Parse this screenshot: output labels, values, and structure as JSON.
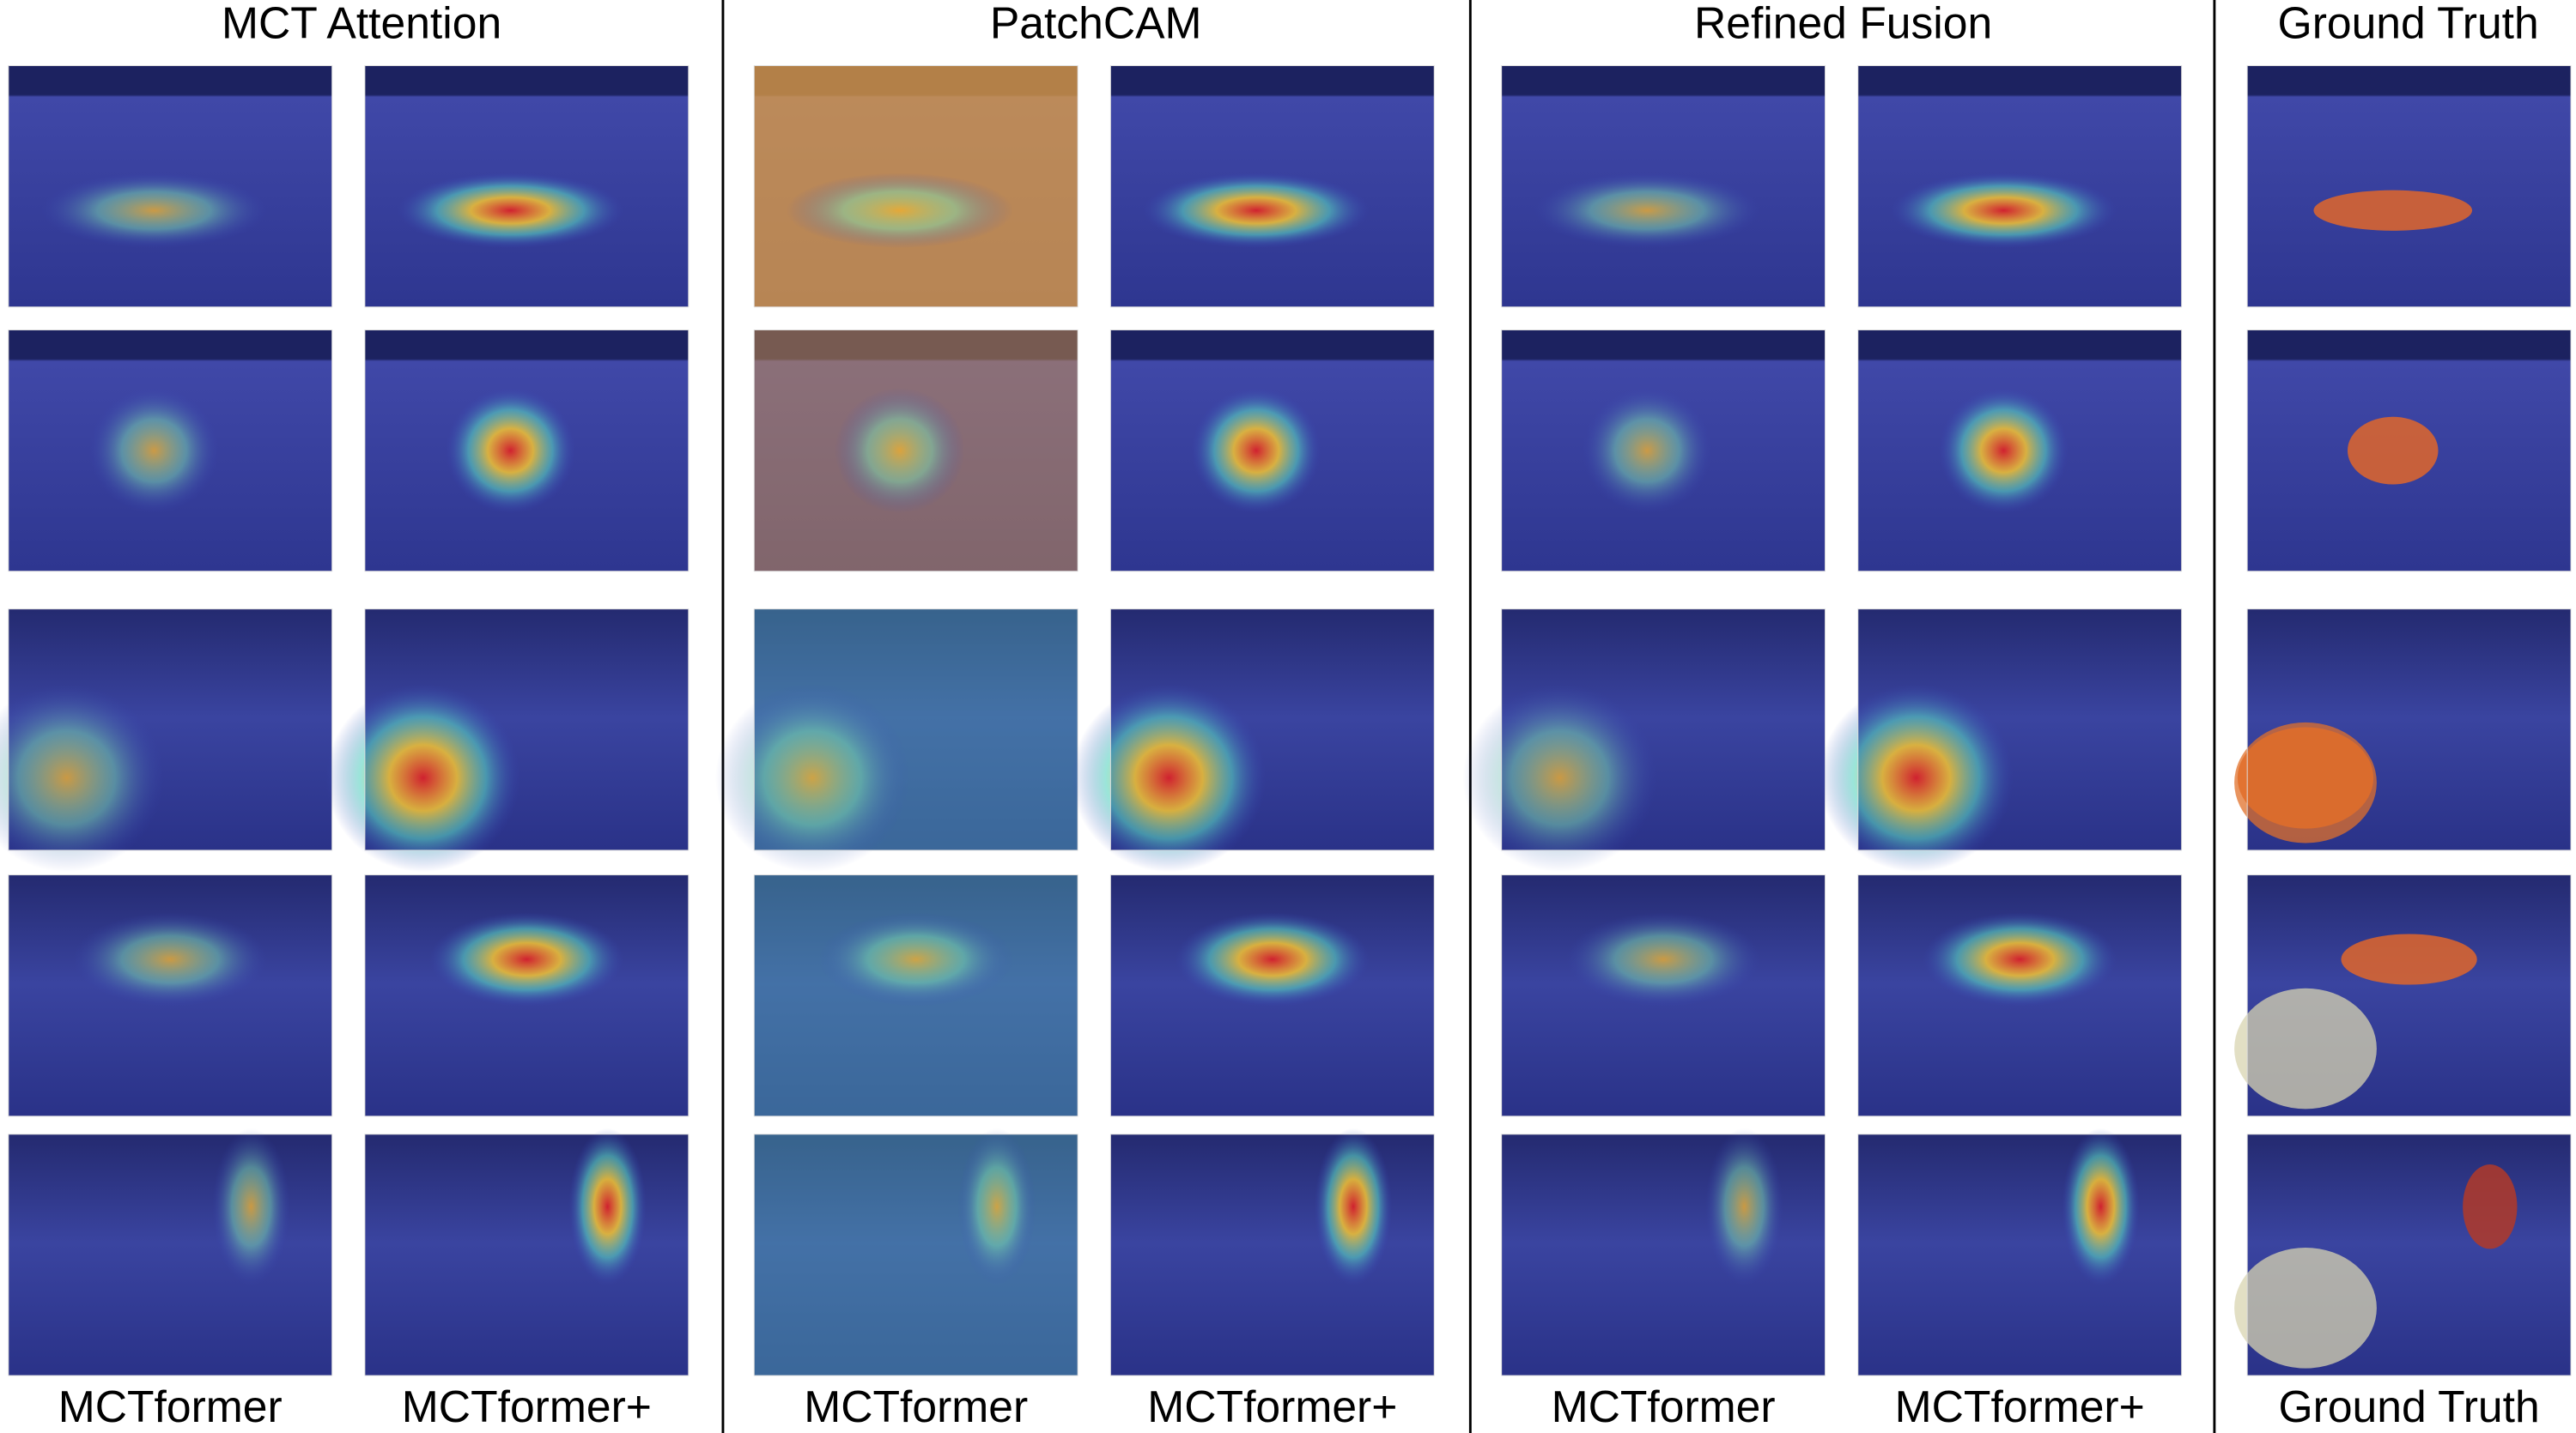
{
  "column_groups": [
    {
      "title": "MCT Attention"
    },
    {
      "title": "PatchCAM"
    },
    {
      "title": "Refined Fusion"
    },
    {
      "title": "Ground Truth"
    }
  ],
  "column_labels": [
    "MCTformer",
    "MCTformer+",
    "MCTformer",
    "MCTformer+",
    "MCTformer",
    "MCTformer+",
    "Ground Truth"
  ]
}
